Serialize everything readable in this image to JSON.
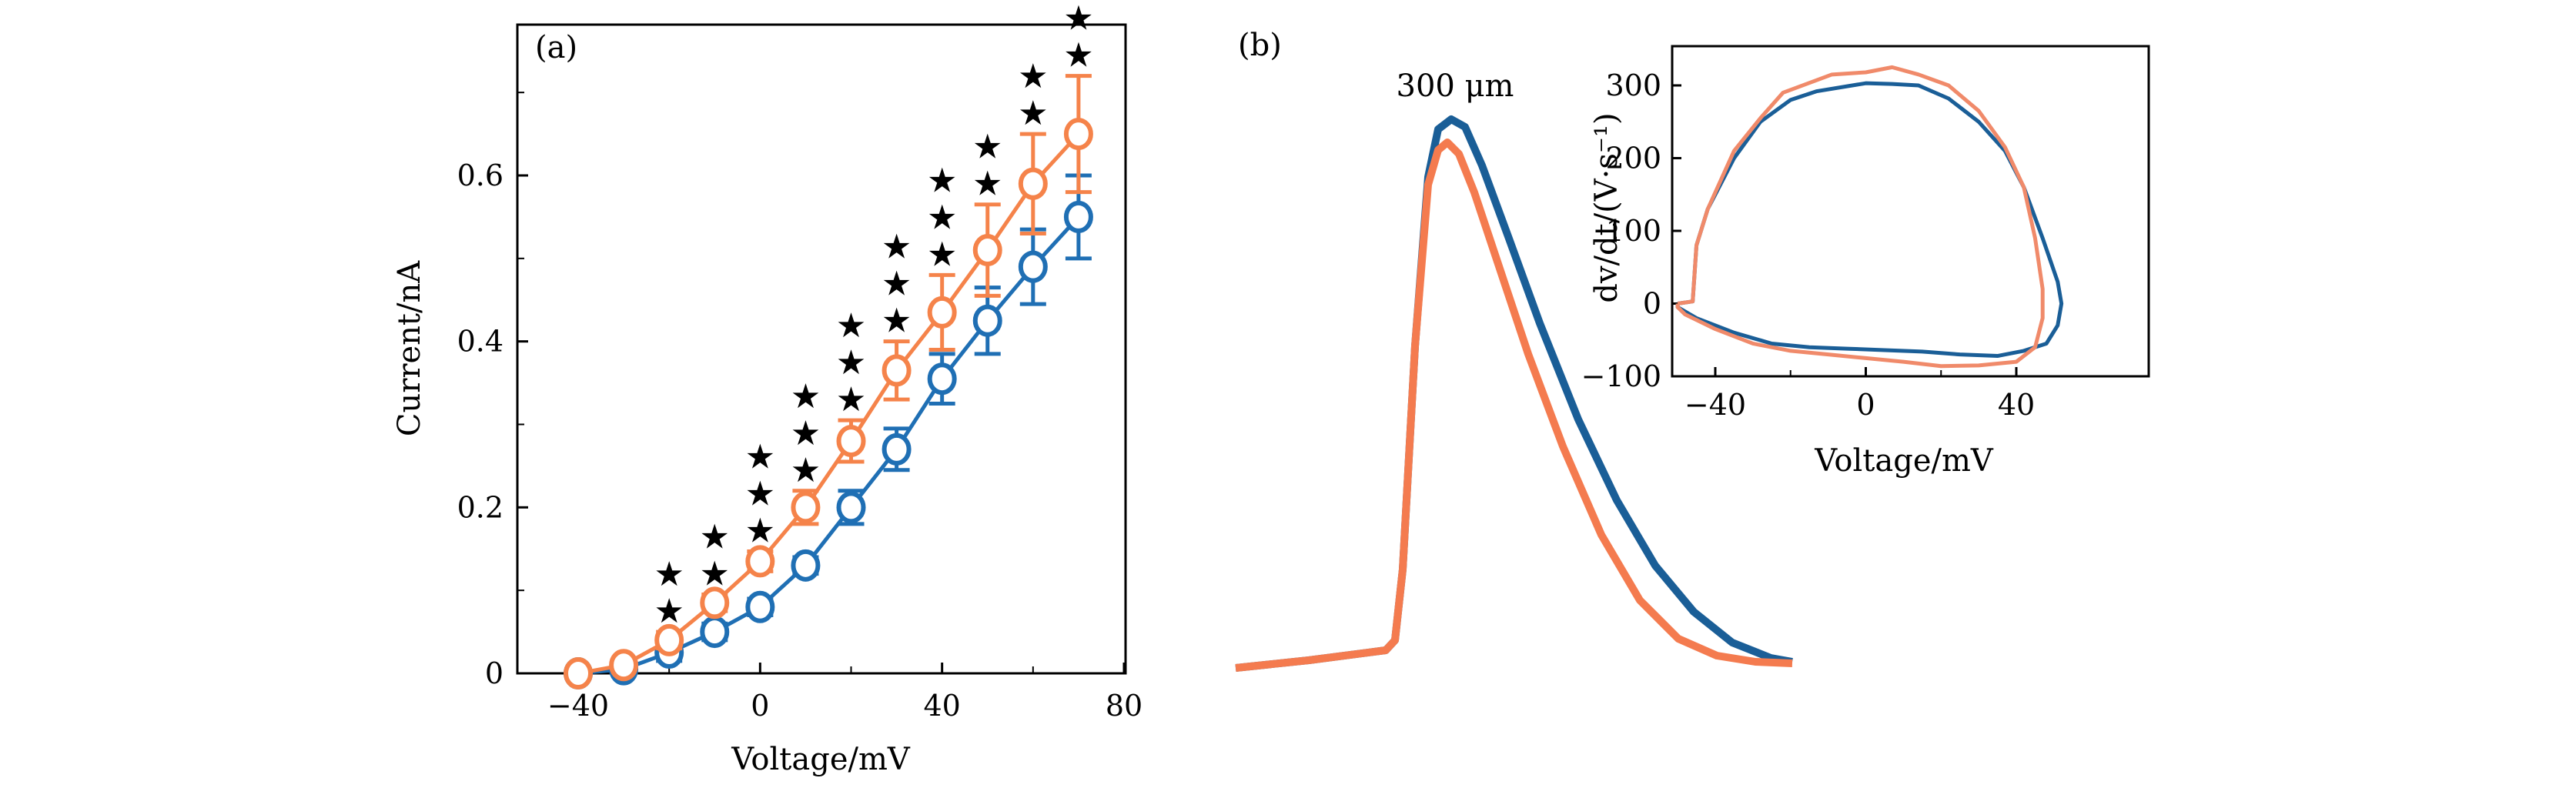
{
  "chart_data": [
    {
      "panel": "(a)",
      "type": "line",
      "xlabel": "Voltage/mV",
      "ylabel": "Current/nA",
      "xlim": [
        -52,
        80
      ],
      "ylim": [
        0,
        0.8
      ],
      "xticks": [
        "-40",
        "0",
        "40",
        "80"
      ],
      "xtick_values": [
        -40,
        0,
        40,
        80
      ],
      "yticks": [
        "0",
        "0.2",
        "0.4",
        "0.6"
      ],
      "ytick_values": [
        0,
        0.2,
        0.4,
        0.6
      ],
      "minor_yticks": [
        0.1,
        0.3,
        0.5,
        0.7
      ],
      "minor_xticks": [
        -20,
        20,
        60
      ],
      "x": [
        -40,
        -30,
        -20,
        -10,
        0,
        10,
        20,
        30,
        40,
        50,
        60,
        70
      ],
      "series": [
        {
          "name": "blue",
          "color": "#1f6fb4",
          "values": [
            0.0,
            0.005,
            0.025,
            0.05,
            0.08,
            0.13,
            0.2,
            0.27,
            0.355,
            0.425,
            0.49,
            0.55
          ],
          "errors": [
            0.004,
            0.005,
            0.01,
            0.01,
            0.01,
            0.01,
            0.02,
            0.025,
            0.03,
            0.04,
            0.045,
            0.05
          ]
        },
        {
          "name": "orange",
          "color": "#f5834a",
          "values": [
            0.0,
            0.01,
            0.04,
            0.085,
            0.135,
            0.2,
            0.28,
            0.365,
            0.435,
            0.51,
            0.59,
            0.65
          ],
          "errors": [
            0.004,
            0.005,
            0.01,
            0.01,
            0.012,
            0.02,
            0.025,
            0.035,
            0.045,
            0.055,
            0.06,
            0.07
          ]
        }
      ],
      "significance_stars": [
        0,
        0,
        2,
        2,
        3,
        3,
        3,
        3,
        3,
        2,
        2,
        2
      ]
    },
    {
      "panel": "(b)",
      "type": "line",
      "annotation": "300 μm",
      "description": "Action potential waveforms (no axes)",
      "series": [
        {
          "name": "blue",
          "color": "#1a5e97",
          "peak_relative": 1.0,
          "decay": "slower"
        },
        {
          "name": "orange",
          "color": "#f47b4f",
          "peak_relative": 0.96,
          "decay": "faster"
        }
      ]
    },
    {
      "panel": "(b)-inset",
      "type": "line",
      "xlabel": "Voltage/mV",
      "ylabel": "dv/dt/(V·s⁻¹)",
      "xlim": [
        -52,
        60
      ],
      "ylim": [
        -100,
        355
      ],
      "xticks": [
        "−40",
        "0",
        "40"
      ],
      "xtick_values": [
        -40,
        0,
        40
      ],
      "yticks": [
        "300",
        "200",
        "100",
        "0",
        "−100"
      ],
      "ytick_values": [
        300,
        200,
        100,
        0,
        -100
      ],
      "series": [
        {
          "name": "blue",
          "color": "#1a5e97",
          "points": [
            [
              -50,
              0
            ],
            [
              -46,
              3
            ],
            [
              -45,
              80
            ],
            [
              -42,
              130
            ],
            [
              -35,
              200
            ],
            [
              -28,
              250
            ],
            [
              -20,
              280
            ],
            [
              -13,
              292
            ],
            [
              0,
              303
            ],
            [
              7,
              302
            ],
            [
              14,
              300
            ],
            [
              22,
              282
            ],
            [
              30,
              250
            ],
            [
              37,
              210
            ],
            [
              42,
              160
            ],
            [
              47,
              90
            ],
            [
              51,
              30
            ],
            [
              52,
              0
            ],
            [
              51,
              -30
            ],
            [
              48,
              -55
            ],
            [
              42,
              -65
            ],
            [
              35,
              -72
            ],
            [
              25,
              -70
            ],
            [
              15,
              -66
            ],
            [
              5,
              -64
            ],
            [
              -5,
              -62
            ],
            [
              -15,
              -60
            ],
            [
              -25,
              -55
            ],
            [
              -35,
              -40
            ],
            [
              -45,
              -20
            ],
            [
              -50,
              -5
            ],
            [
              -50,
              0
            ]
          ]
        },
        {
          "name": "orange",
          "color": "#f08a6a",
          "points": [
            [
              -50,
              0
            ],
            [
              -46,
              3
            ],
            [
              -45,
              80
            ],
            [
              -42,
              130
            ],
            [
              -35,
              210
            ],
            [
              -28,
              255
            ],
            [
              -22,
              290
            ],
            [
              -9,
              315
            ],
            [
              0,
              318
            ],
            [
              7,
              325
            ],
            [
              14,
              315
            ],
            [
              22,
              300
            ],
            [
              30,
              265
            ],
            [
              37,
              215
            ],
            [
              42,
              160
            ],
            [
              45,
              90
            ],
            [
              47,
              20
            ],
            [
              47,
              -20
            ],
            [
              45,
              -60
            ],
            [
              40,
              -80
            ],
            [
              30,
              -85
            ],
            [
              20,
              -86
            ],
            [
              10,
              -80
            ],
            [
              0,
              -75
            ],
            [
              -10,
              -70
            ],
            [
              -20,
              -65
            ],
            [
              -30,
              -55
            ],
            [
              -40,
              -35
            ],
            [
              -48,
              -15
            ],
            [
              -50,
              -5
            ],
            [
              -50,
              0
            ]
          ]
        }
      ]
    }
  ],
  "labels": {
    "panel_a": "(a)",
    "panel_b": "(b)",
    "a_xlabel": "Voltage/mV",
    "a_ylabel": "Current/nA",
    "b_annotation": "300 μm",
    "inset_xlabel": "Voltage/mV",
    "inset_ylabel": "dv/dt/(V·s⁻¹)"
  }
}
